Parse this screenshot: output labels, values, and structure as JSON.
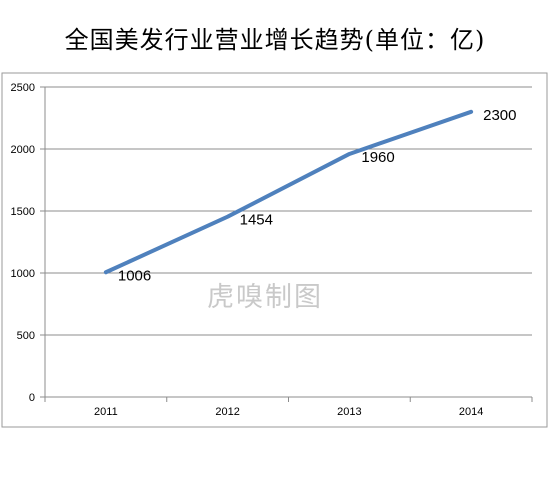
{
  "chart_data": {
    "type": "line",
    "title": "全国美发行业营业增长趋势(单位：亿)",
    "categories": [
      "2011",
      "2012",
      "2013",
      "2014"
    ],
    "series": [
      {
        "values": [
          1006,
          1454,
          1960,
          2300
        ],
        "color": "#4f81bd"
      }
    ],
    "data_labels": [
      "1006",
      "1454",
      "1960",
      "2300"
    ],
    "y_ticks": [
      "0",
      "500",
      "1000",
      "1500",
      "2000",
      "2500"
    ],
    "ylim": [
      0,
      2500
    ],
    "grid": true,
    "xlabel": "",
    "ylabel": ""
  },
  "watermark": "虎嗅制图"
}
